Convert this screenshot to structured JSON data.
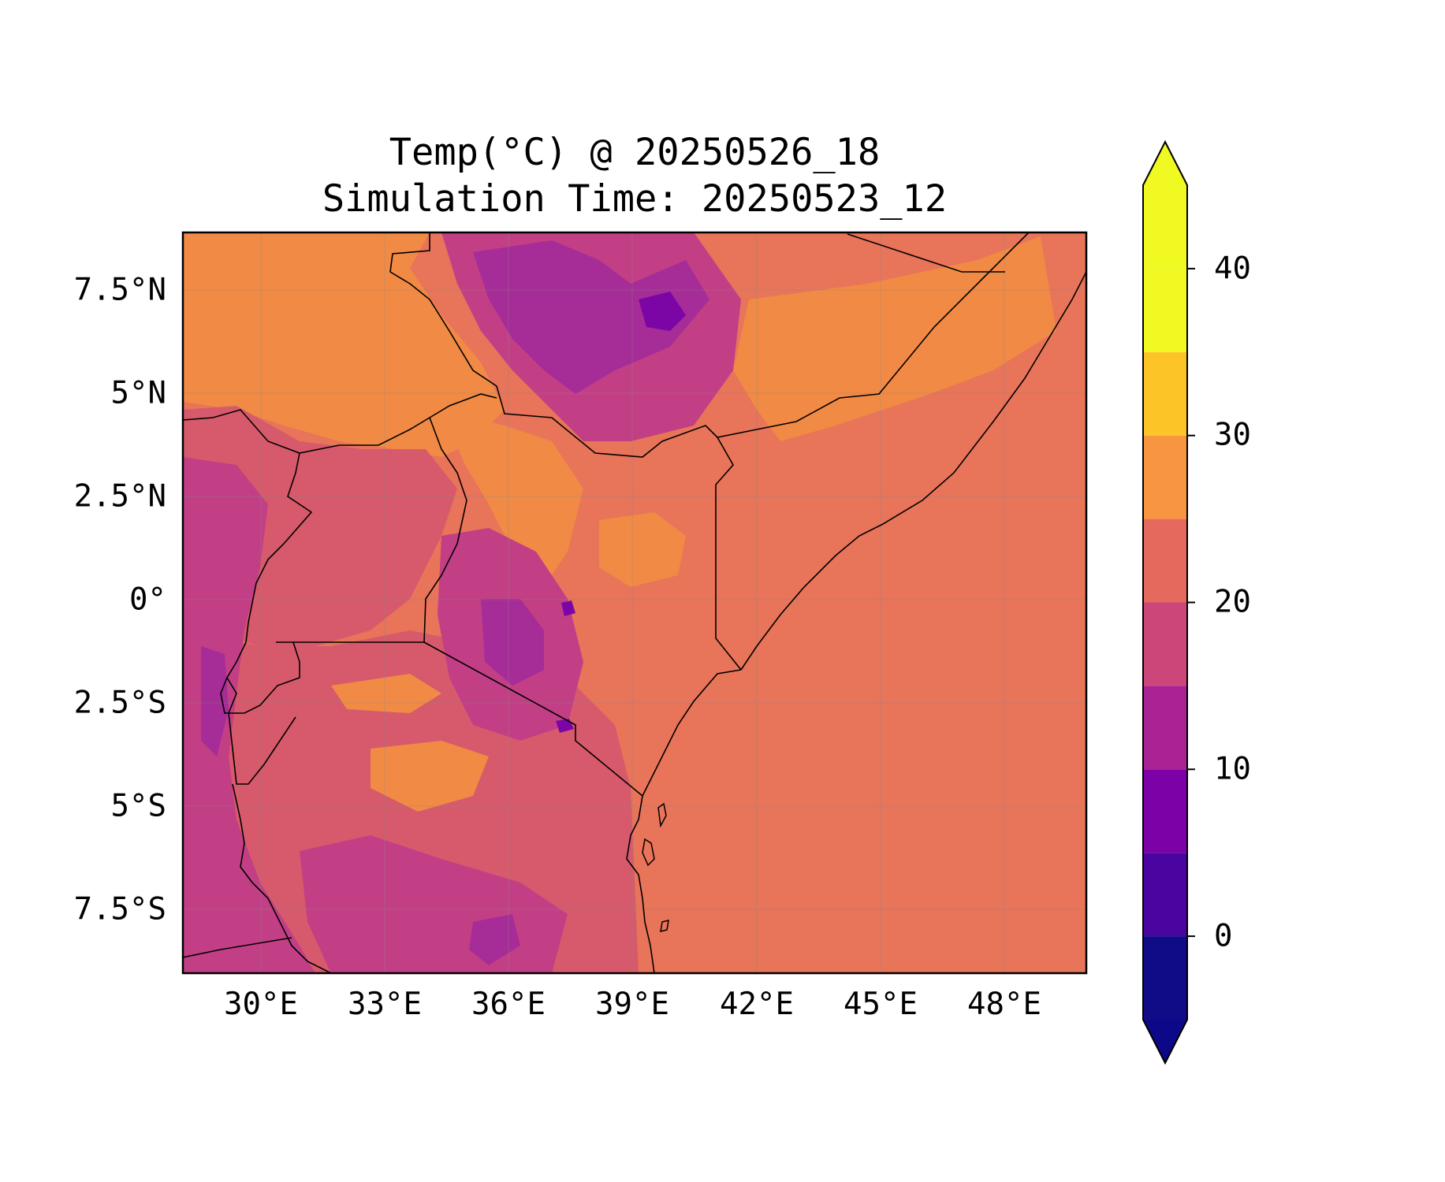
{
  "title_lines": [
    "Temp(°C) @ 20250526_18",
    "Simulation Time: 20250523_12"
  ],
  "map": {
    "type": "filled-contour-map",
    "variable": "Temperature",
    "unit": "°C",
    "lon_range": [
      27.7,
      50.2
    ],
    "lat_range": [
      -8.9,
      9.0
    ],
    "lon_ticks": [
      30,
      33,
      36,
      39,
      42,
      45,
      48
    ],
    "lat_ticks": [
      7.5,
      5,
      2.5,
      0,
      -2.5,
      -5,
      -7.5
    ],
    "lon_tick_labels": [
      "30°E",
      "33°E",
      "36°E",
      "39°E",
      "42°E",
      "45°E",
      "48°E"
    ],
    "lat_tick_labels": [
      "7.5°N",
      "5°N",
      "2.5°N",
      "0°",
      "2.5°S",
      "5°S",
      "7.5°S"
    ],
    "grid": true,
    "region": "East Africa"
  },
  "colorbar": {
    "levels": [
      -5,
      0,
      5,
      10,
      15,
      20,
      25,
      30,
      35,
      40,
      45
    ],
    "colors": [
      "#100c87",
      "#4a04a0",
      "#7c02a8",
      "#a92395",
      "#cc4679",
      "#e56a5d",
      "#f89540",
      "#fdc428",
      "#f0f921",
      "#f0f921"
    ],
    "under_color": "#0d0887",
    "over_color": "#f0f921",
    "extend": "both",
    "tick_values": [
      0,
      10,
      20,
      30,
      40
    ],
    "tick_labels": [
      "0",
      "10",
      "20",
      "30",
      "40"
    ]
  },
  "fill_colors": {
    "sea": "#e87459",
    "warm": "#f18a45",
    "mild": "#d65a6b",
    "cool": "#c23f86",
    "cold": "#a62c98",
    "coldest": "#7c05a6",
    "border": "#000000"
  }
}
